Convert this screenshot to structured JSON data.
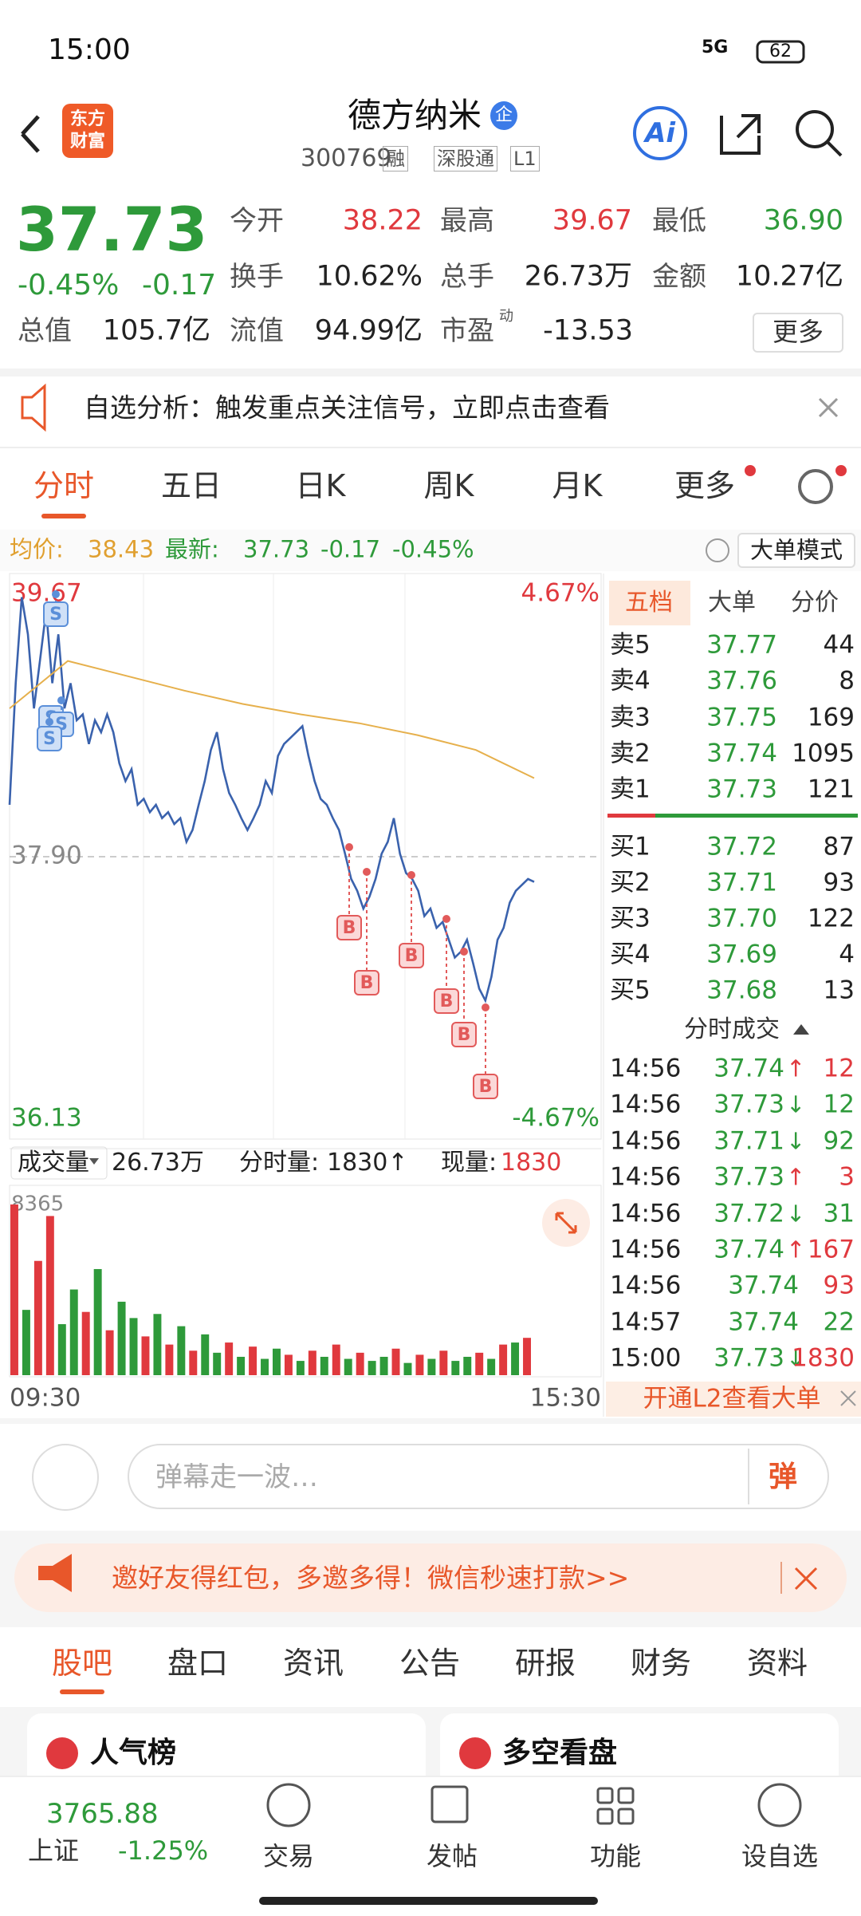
{
  "status_bar": {
    "time": "15:00",
    "network": "5G",
    "battery": "62"
  },
  "header": {
    "logo_line1": "东方",
    "logo_line2": "财富",
    "title": "德方纳米",
    "badge": "企",
    "code": "300769",
    "tags": [
      "融",
      "深股通",
      "L1"
    ],
    "ai": "Ai"
  },
  "quote": {
    "price": "37.73",
    "change_pct": "-0.45%",
    "change": "-0.17",
    "price_color": "#2e9a3a",
    "rows": [
      [
        {
          "label": "今开",
          "value": "38.22",
          "color": "#e0393e"
        },
        {
          "label": "最高",
          "value": "39.67",
          "color": "#e0393e"
        },
        {
          "label": "最低",
          "value": "36.90",
          "color": "#2e9a3a"
        }
      ],
      [
        {
          "label": "换手",
          "value": "10.62%",
          "color": "#222222"
        },
        {
          "label": "总手",
          "value": "26.73万",
          "color": "#222222"
        },
        {
          "label": "金额",
          "value": "10.27亿",
          "color": "#222222"
        }
      ],
      [
        {
          "label": "总值",
          "value": "105.7亿",
          "color": "#222222"
        },
        {
          "label": "流值",
          "value": "94.99亿",
          "color": "#222222"
        },
        {
          "label": "市盈",
          "sup": "动",
          "value": "-13.53",
          "color": "#222222"
        }
      ]
    ],
    "more": "更多"
  },
  "alert": {
    "text": "自选分析：触发重点关注信号，立即点击查看"
  },
  "tabs": {
    "items": [
      "分时",
      "五日",
      "日K",
      "周K",
      "月K",
      "更多"
    ],
    "active": 0
  },
  "info_bar": {
    "avg_label": "均价:",
    "avg": "38.43",
    "last_label": "最新:",
    "last": "37.73",
    "change": "-0.17",
    "change_pct": "-0.45%",
    "mode": "大单模式"
  },
  "chart_data": [
    {
      "type": "line",
      "series": [
        {
          "color": "#3a62ad",
          "values": [
            38.25,
            39.07,
            39.65,
            39.4,
            38.9,
            39.23,
            39.56,
            39.07,
            39.4,
            38.9,
            39.07,
            38.82,
            38.86,
            38.66,
            38.82,
            38.74,
            38.86,
            38.74,
            38.53,
            38.41,
            38.49,
            38.25,
            38.29,
            38.2,
            38.25,
            38.16,
            38.2,
            38.12,
            38.16,
            38.0,
            38.08,
            38.25,
            38.41,
            38.62,
            38.74,
            38.49,
            38.33,
            38.25,
            38.16,
            38.08,
            38.16,
            38.25,
            38.41,
            38.33,
            38.58,
            38.66,
            38.7,
            38.74,
            38.78,
            38.58,
            38.41,
            38.29,
            38.25,
            38.16,
            38.08,
            37.92,
            37.75,
            37.67,
            37.55,
            37.63,
            37.75,
            37.92,
            38.0,
            38.16,
            37.92,
            37.79,
            37.75,
            37.67,
            37.5,
            37.55,
            37.42,
            37.46,
            37.34,
            37.22,
            37.26,
            37.34,
            37.18,
            37.01,
            36.93,
            37.09,
            37.34,
            37.42,
            37.59,
            37.67,
            37.71,
            37.75,
            37.73
          ]
        },
        {
          "color": "#e6b04c",
          "values": [
            38.9,
            39.22,
            39.12,
            39.02,
            38.93,
            38.86,
            38.8,
            38.72,
            38.62,
            38.43
          ]
        }
      ],
      "ylim": [
        36.13,
        39.67
      ],
      "yticks": [
        36.13,
        {
          "value": 37.9,
          "label": "37.90"
        },
        39.67
      ],
      "y2lim": [
        -4.67,
        4.67
      ],
      "y2ticks": [
        {
          "value": -4.67,
          "label": "-4.67%"
        },
        {
          "value": 4.67,
          "label": "4.67%"
        }
      ],
      "up_color": "#e0393e",
      "down_color": "#2e9a3a",
      "signals": [
        "S",
        "S",
        "S",
        "S",
        "B",
        "B",
        "B",
        "B",
        "B",
        "B"
      ]
    },
    {
      "type": "bar",
      "title": "成交量",
      "total": "26.73万",
      "stats": [
        {
          "label": "分时量:",
          "value": "1830↑"
        },
        {
          "label": "现量:",
          "value": "1830"
        }
      ],
      "values": [
        8365,
        3200,
        5600,
        7800,
        2500,
        4200,
        3100,
        5200,
        2200,
        3600,
        2800,
        1900,
        3000,
        1500,
        2400,
        1200,
        2000,
        1100,
        1600,
        900,
        1400,
        800,
        1300,
        1000,
        700,
        1200,
        900,
        1500,
        800,
        1100,
        700,
        900,
        1300,
        600,
        1000,
        800,
        1200,
        700,
        900,
        1100,
        800,
        1500,
        1600,
        1830
      ],
      "colors": [
        "#e0393e",
        "#2e9a3a",
        "#e0393e",
        "#e0393e",
        "#2e9a3a",
        "#2e9a3a",
        "#e0393e",
        "#2e9a3a",
        "#e0393e",
        "#2e9a3a",
        "#2e9a3a",
        "#e0393e",
        "#2e9a3a",
        "#e0393e",
        "#2e9a3a",
        "#e0393e",
        "#2e9a3a",
        "#2e9a3a",
        "#e0393e",
        "#2e9a3a",
        "#e0393e",
        "#2e9a3a",
        "#2e9a3a",
        "#e0393e",
        "#2e9a3a",
        "#e0393e",
        "#2e9a3a",
        "#e0393e",
        "#2e9a3a",
        "#e0393e",
        "#2e9a3a",
        "#2e9a3a",
        "#e0393e",
        "#2e9a3a",
        "#e0393e",
        "#2e9a3a",
        "#e0393e",
        "#2e9a3a",
        "#2e9a3a",
        "#e0393e",
        "#2e9a3a",
        "#e0393e",
        "#2e9a3a",
        "#e0393e"
      ],
      "ylim": [
        0,
        8365
      ],
      "yticks": [
        8365
      ],
      "x_labels": [
        "09:30",
        "15:30"
      ]
    }
  ],
  "order_book": {
    "tabs": [
      "五档",
      "大单",
      "分价"
    ],
    "asks": [
      {
        "label": "卖5",
        "price": "37.77",
        "volume": "44"
      },
      {
        "label": "卖4",
        "price": "37.76",
        "volume": "8"
      },
      {
        "label": "卖3",
        "price": "37.75",
        "volume": "169"
      },
      {
        "label": "卖2",
        "price": "37.74",
        "volume": "1095"
      },
      {
        "label": "卖1",
        "price": "37.73",
        "volume": "121"
      }
    ],
    "bids": [
      {
        "label": "买1",
        "price": "37.72",
        "volume": "87"
      },
      {
        "label": "买2",
        "price": "37.71",
        "volume": "93"
      },
      {
        "label": "买3",
        "price": "37.70",
        "volume": "122"
      },
      {
        "label": "买4",
        "price": "37.69",
        "volume": "4"
      },
      {
        "label": "买5",
        "price": "37.68",
        "volume": "13"
      }
    ],
    "trades_title": "分时成交",
    "trades": [
      {
        "time": "14:56",
        "price": "37.74",
        "arrow": "↑",
        "volume": "12",
        "color": "#e0393e"
      },
      {
        "time": "14:56",
        "price": "37.73",
        "arrow": "↓",
        "volume": "12",
        "color": "#2e9a3a"
      },
      {
        "time": "14:56",
        "price": "37.71",
        "arrow": "↓",
        "volume": "92",
        "color": "#2e9a3a"
      },
      {
        "time": "14:56",
        "price": "37.73",
        "arrow": "↑",
        "volume": "3",
        "color": "#e0393e"
      },
      {
        "time": "14:56",
        "price": "37.72",
        "arrow": "↓",
        "volume": "31",
        "color": "#2e9a3a"
      },
      {
        "time": "14:56",
        "price": "37.74",
        "arrow": "↑",
        "volume": "167",
        "color": "#e0393e"
      },
      {
        "time": "14:56",
        "price": "37.74",
        "volume": "93",
        "color": "#e0393e"
      },
      {
        "time": "14:57",
        "price": "37.74",
        "volume": "22",
        "color": "#2e9a3a"
      },
      {
        "time": "15:00",
        "price": "37.73",
        "arrow": "↓",
        "volume": "1830",
        "color": "#e0393e"
      }
    ],
    "l2": "开通L2查看大单"
  },
  "comment": {
    "placeholder": "弹幕走一波…",
    "button": "弹"
  },
  "banner": {
    "text": "邀好友得红包，多邀多得！微信秒速打款>>"
  },
  "section_tabs": {
    "items": [
      "股吧",
      "盘口",
      "资讯",
      "公告",
      "研报",
      "财务",
      "资料"
    ],
    "active": 0
  },
  "cards": [
    "人气榜",
    "多空看盘"
  ],
  "bottom_nav": {
    "index_value": "3765.88",
    "index_name": "上证",
    "index_change": "-1.25%",
    "items": [
      "交易",
      "发帖",
      "功能",
      "设自选"
    ]
  }
}
